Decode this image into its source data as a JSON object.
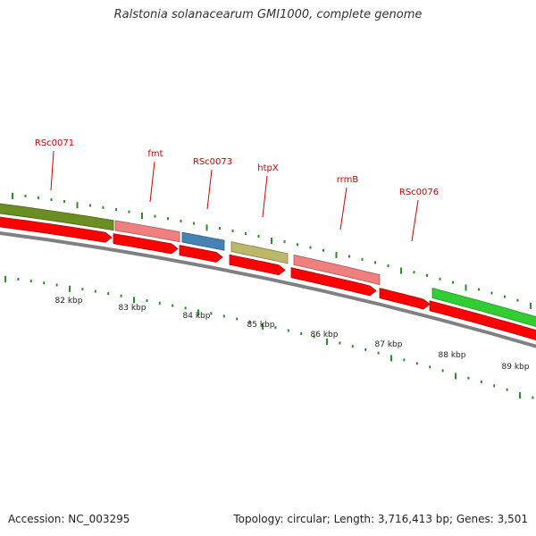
{
  "title": "Ralstonia solanacearum GMI1000, complete genome",
  "footer": {
    "accession": "Accession: NC_003295",
    "summary": "Topology: circular; Length: 3,716,413 bp; Genes: 3,501"
  },
  "colors": {
    "label": "#cc0000",
    "tick": "#2e8b2e",
    "backbone": "#808080",
    "cds": "#ff0000"
  },
  "genes": [
    {
      "name": "RSc0071",
      "color": "#6b8e23"
    },
    {
      "name": "fmt",
      "color": "#f08080"
    },
    {
      "name": "RSc0073",
      "color": "#4682b4"
    },
    {
      "name": "htpX",
      "color": "#bdb76b"
    },
    {
      "name": "rrmB",
      "color": "#f08080"
    },
    {
      "name": "RSc0076",
      "color": "#ffffff"
    },
    {
      "name": "",
      "color": "#32cd32"
    }
  ],
  "gene_labels": [
    "RSc0071",
    "fmt",
    "RSc0073",
    "htpX",
    "rrmB",
    "RSc0076"
  ],
  "scale": [
    "82 kbp",
    "83 kbp",
    "84 kbp",
    "85 kbp",
    "86 kbp",
    "87 kbp",
    "88 kbp",
    "89 kbp"
  ]
}
